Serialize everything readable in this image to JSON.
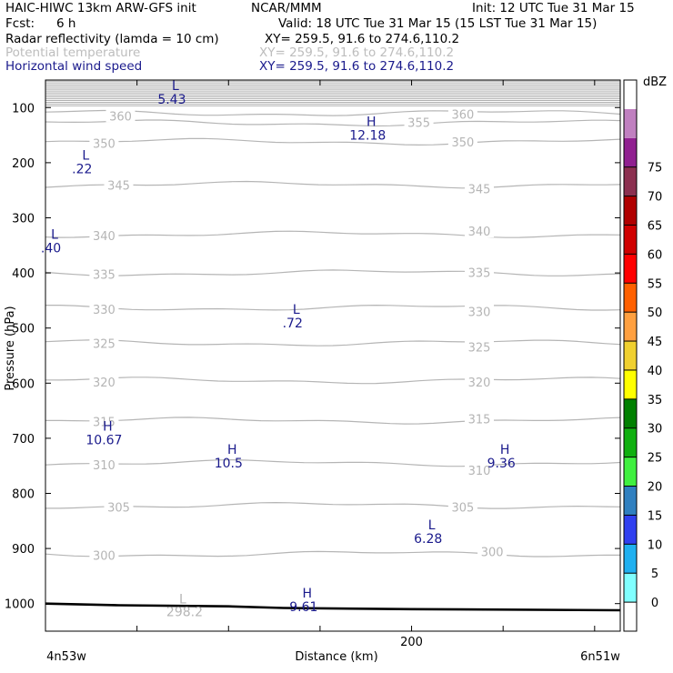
{
  "header": {
    "model": "HAIC-HIWC 13km ARW-GFS init",
    "org": "NCAR/MMM",
    "init": "Init: 12 UTC Tue 31 Mar 15",
    "fcst_label": "Fcst:",
    "fcst_value": "6 h",
    "valid": "Valid: 18 UTC Tue 31 Mar 15 (15 LST Tue 31 Mar 15)",
    "fields": [
      {
        "name": "Radar reflectivity (lamda = 10 cm)",
        "xy": "XY= 259.5, 91.6 to 274.6,110.2",
        "color": "#000000"
      },
      {
        "name": "Potential temperature",
        "xy": "XY= 259.5, 91.6 to 274.6,110.2",
        "color": "#bdbdbd"
      },
      {
        "name": "Horizontal wind speed",
        "xy": "XY= 259.5, 91.6 to 274.6,110.2",
        "color": "#1a1a8c"
      }
    ]
  },
  "chart_data": {
    "type": "line",
    "title": "",
    "xlabel": "Distance (km)",
    "ylabel": "Pressure (hPa)",
    "x_ticks": [
      {
        "value": 200,
        "label": "200"
      }
    ],
    "x_end_labels": {
      "left": "4n53w",
      "right": "6n51w"
    },
    "y_ticks": [
      100,
      200,
      300,
      400,
      500,
      600,
      700,
      800,
      900,
      1000
    ],
    "ylim": [
      50,
      1050
    ],
    "xlim": [
      0,
      314
    ],
    "grid": false,
    "theta_contours": [
      {
        "label": "300",
        "pressure": 910
      },
      {
        "label": "305",
        "pressure": 822
      },
      {
        "label": "310",
        "pressure": 745
      },
      {
        "label": "315",
        "pressure": 668
      },
      {
        "label": "320",
        "pressure": 595
      },
      {
        "label": "325",
        "pressure": 527
      },
      {
        "label": "330",
        "pressure": 463
      },
      {
        "label": "335",
        "pressure": 400
      },
      {
        "label": "340",
        "pressure": 330
      },
      {
        "label": "345",
        "pressure": 240
      },
      {
        "label": "350",
        "pressure": 162
      },
      {
        "label": "355",
        "pressure": 128
      },
      {
        "label": "360",
        "pressure": 110
      }
    ],
    "theta_labels": [
      {
        "text": "360",
        "x": 41,
        "p": 115
      },
      {
        "text": "360",
        "x": 228,
        "p": 112
      },
      {
        "text": "355",
        "x": 204,
        "p": 127
      },
      {
        "text": "350",
        "x": 32,
        "p": 165
      },
      {
        "text": "350",
        "x": 228,
        "p": 162
      },
      {
        "text": "345",
        "x": 40,
        "p": 241
      },
      {
        "text": "345",
        "x": 237,
        "p": 247
      },
      {
        "text": "340",
        "x": 32,
        "p": 332
      },
      {
        "text": "340",
        "x": 237,
        "p": 324
      },
      {
        "text": "335",
        "x": 32,
        "p": 402
      },
      {
        "text": "335",
        "x": 237,
        "p": 399
      },
      {
        "text": "330",
        "x": 32,
        "p": 466
      },
      {
        "text": "330",
        "x": 237,
        "p": 470
      },
      {
        "text": "325",
        "x": 32,
        "p": 528
      },
      {
        "text": "325",
        "x": 237,
        "p": 534
      },
      {
        "text": "320",
        "x": 32,
        "p": 598
      },
      {
        "text": "320",
        "x": 237,
        "p": 598
      },
      {
        "text": "315",
        "x": 32,
        "p": 670
      },
      {
        "text": "315",
        "x": 237,
        "p": 665
      },
      {
        "text": "310",
        "x": 32,
        "p": 748
      },
      {
        "text": "310",
        "x": 237,
        "p": 758
      },
      {
        "text": "305",
        "x": 40,
        "p": 825
      },
      {
        "text": "305",
        "x": 228,
        "p": 825
      },
      {
        "text": "300",
        "x": 32,
        "p": 912
      },
      {
        "text": "300",
        "x": 244,
        "p": 906
      }
    ],
    "wind_extrema": [
      {
        "mark": "L",
        "value": "5.43",
        "x": 71,
        "p": 68
      },
      {
        "mark": "H",
        "value": "12.18",
        "x": 178,
        "p": 133
      },
      {
        "mark": "L",
        "value": ".22",
        "x": 22,
        "p": 194
      },
      {
        "mark": "L",
        "value": ".40",
        "x": 5,
        "p": 338
      },
      {
        "mark": "L",
        "value": ".72",
        "x": 137,
        "p": 474
      },
      {
        "mark": "H",
        "value": "10.67",
        "x": 34,
        "p": 686
      },
      {
        "mark": "H",
        "value": "10.5",
        "x": 102,
        "p": 728
      },
      {
        "mark": "H",
        "value": "9.36",
        "x": 251,
        "p": 728
      },
      {
        "mark": "L",
        "value": "6.28",
        "x": 211,
        "p": 865
      },
      {
        "mark": "H",
        "value": "9.61",
        "x": 143,
        "p": 989
      }
    ],
    "theta_extrema": [
      {
        "mark": "L",
        "value": "298.2",
        "x": 75,
        "p": 1000
      }
    ],
    "terrain": [
      [
        0,
        1000
      ],
      [
        40,
        1003
      ],
      [
        100,
        1005
      ],
      [
        130,
        1008
      ],
      [
        200,
        1010
      ],
      [
        314,
        1012
      ]
    ],
    "colorbar": {
      "unit": "dBZ",
      "levels": [
        "0",
        "5",
        "10",
        "15",
        "20",
        "25",
        "30",
        "35",
        "40",
        "45",
        "50",
        "55",
        "60",
        "65",
        "70",
        "75"
      ],
      "colors": [
        "#ffffff",
        "#80ffff",
        "#20b0f0",
        "#3040f0",
        "#3080c0",
        "#40f040",
        "#10b010",
        "#008000",
        "#ffff00",
        "#f0d030",
        "#ffa040",
        "#ff6000",
        "#ff0000",
        "#d00000",
        "#b00000",
        "#8c3050",
        "#902090",
        "#c080c0",
        "#ffffff"
      ]
    }
  }
}
